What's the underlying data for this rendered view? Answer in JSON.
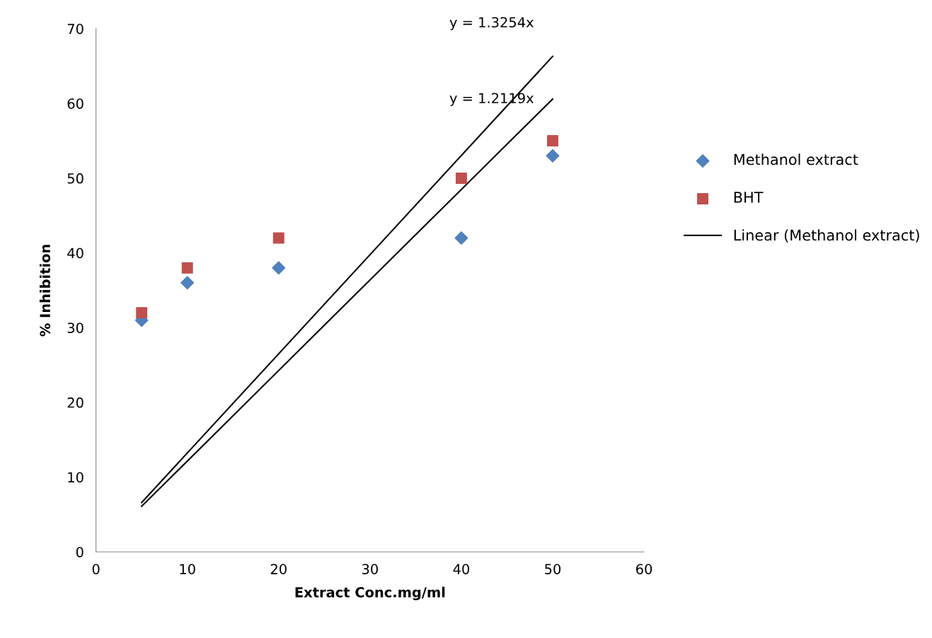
{
  "chart_data": {
    "type": "scatter",
    "xlabel": "Extract Conc.mg/ml",
    "ylabel": "% Inhibition",
    "xlim": [
      0,
      60
    ],
    "xticks": [
      0,
      10,
      20,
      30,
      40,
      50,
      60
    ],
    "ylim": [
      0,
      70
    ],
    "yticks": [
      0,
      10,
      20,
      30,
      40,
      50,
      60,
      70
    ],
    "grid": false,
    "legend": "right",
    "series": [
      {
        "name": "Methanol extract",
        "color": "#4f81bd",
        "marker": "diamond",
        "x": [
          5,
          10,
          20,
          40,
          50
        ],
        "values": [
          31,
          36,
          38,
          42,
          53
        ]
      },
      {
        "name": "BHT",
        "color": "#c0504d",
        "marker": "square",
        "x": [
          5,
          10,
          20,
          40,
          50
        ],
        "values": [
          32,
          38,
          42,
          50,
          55
        ]
      },
      {
        "type": "line",
        "color": "#000000",
        "marker": "none",
        "line_style": "solid",
        "x": [
          5,
          50
        ],
        "values": [
          6.6,
          66.3
        ]
      },
      {
        "type": "line",
        "name": "Linear (Methanol extract)",
        "color": "#000000",
        "marker": "none",
        "line_style": "solid",
        "x": [
          5,
          50
        ],
        "values": [
          6.1,
          60.6
        ]
      }
    ],
    "annotations": [
      "y = 1.3254x",
      "y = 1.2119x"
    ]
  }
}
